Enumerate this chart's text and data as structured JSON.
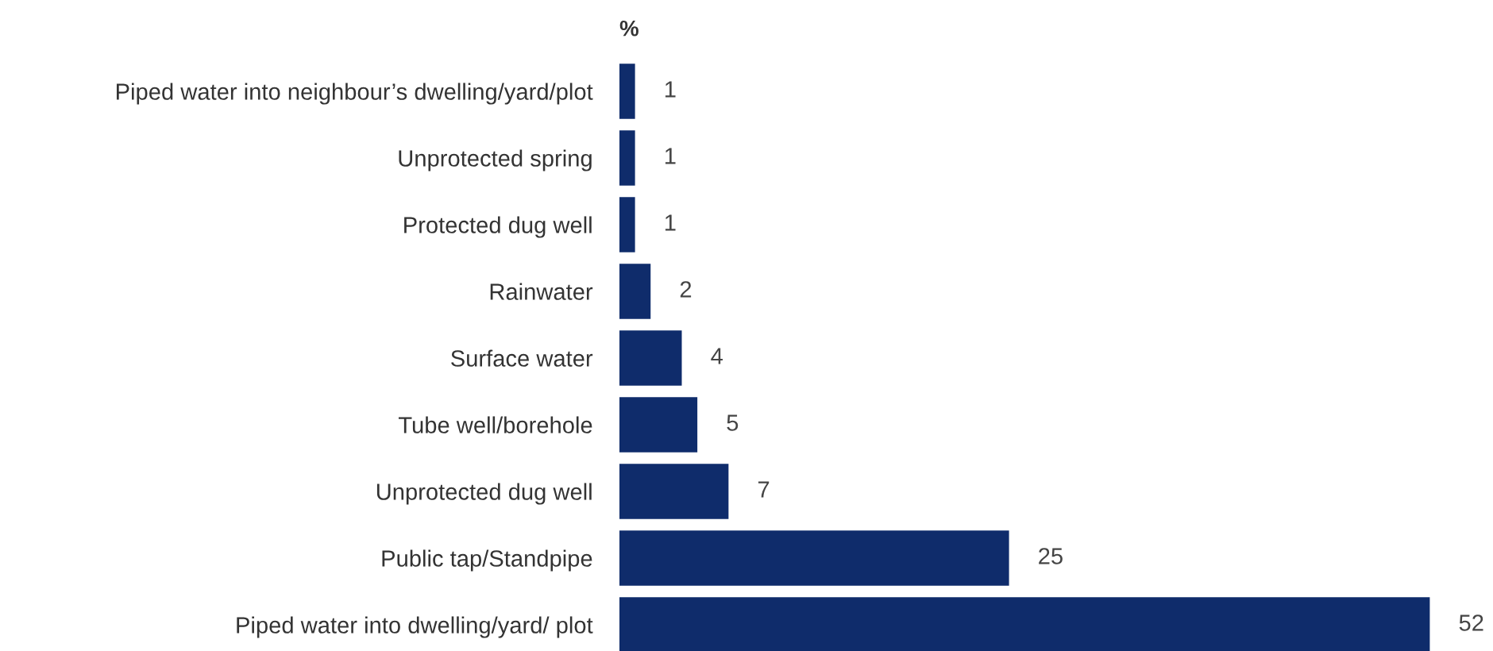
{
  "chart_data": {
    "type": "bar",
    "orientation": "horizontal",
    "xlabel": "%",
    "categories": [
      "Piped water into neighbour’s dwelling/yard/plot",
      "Unprotected spring",
      "Protected dug well",
      "Rainwater",
      "Surface water",
      "Tube well/borehole",
      "Unprotected dug well",
      "Public tap/Standpipe",
      "Piped water into dwelling/yard/ plot"
    ],
    "values": [
      1,
      1,
      1,
      2,
      4,
      5,
      7,
      25,
      52
    ],
    "color": "#0f2c6b",
    "data_labels": true,
    "grid": false,
    "legend": false
  }
}
